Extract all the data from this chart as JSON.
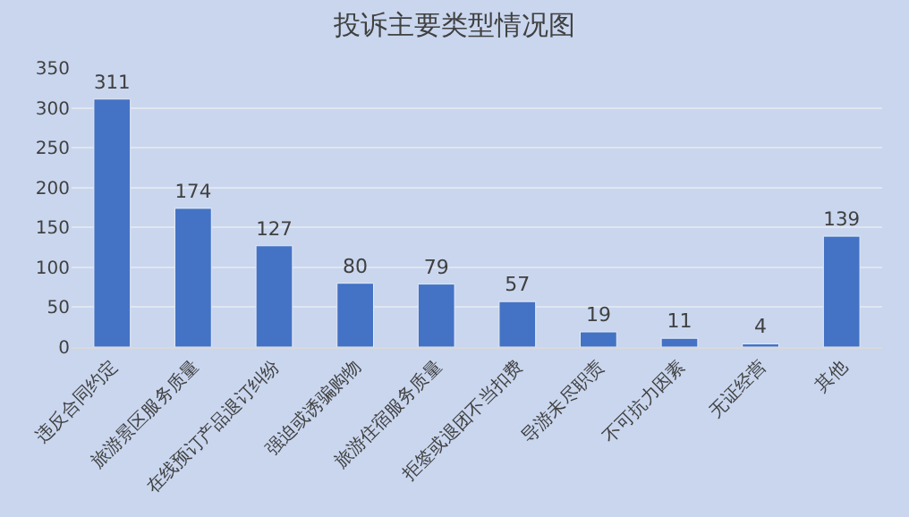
{
  "chart_data": {
    "type": "bar",
    "title": "投诉主要类型情况图",
    "categories": [
      "违反合同约定",
      "旅游景区服务质量",
      "在线预订产品退订纠纷",
      "强迫或诱骗购物",
      "旅游住宿服务质量",
      "拒签或退团不当扣费",
      "导游未尽职责",
      "不可抗力因素",
      "无证经营",
      "其他"
    ],
    "values": [
      311,
      174,
      127,
      80,
      79,
      57,
      19,
      11,
      4,
      139
    ],
    "color": "#4472c4",
    "ylim": [
      0,
      350
    ],
    "yticks": [
      0,
      50,
      100,
      150,
      200,
      250,
      300,
      350
    ],
    "grid": "y",
    "data_labels": true
  }
}
